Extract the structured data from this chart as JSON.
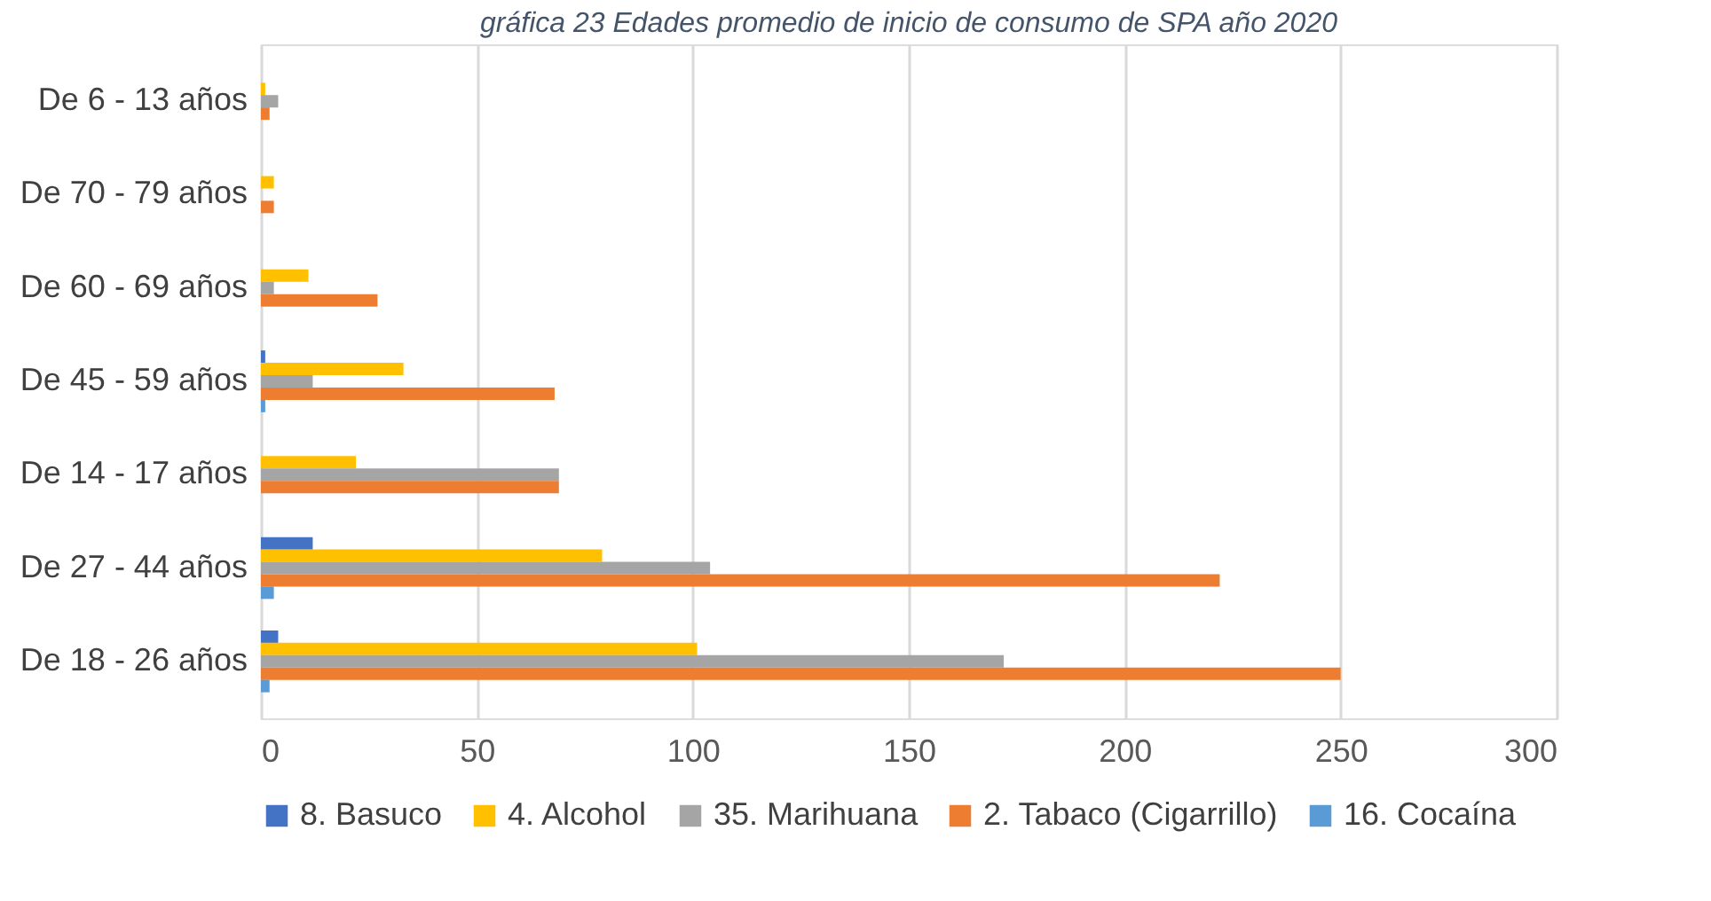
{
  "chart_data": {
    "type": "bar",
    "orientation": "horizontal",
    "title": "gráfica 23 Edades promedio de inicio de consumo de SPA año 2020",
    "categories": [
      "De 6 - 13 años",
      "De 70 - 79 años",
      "De 60 - 69 años",
      "De 45 - 59 años",
      "De 14 - 17 años",
      "De 27 - 44 años",
      "De 18 - 26 años"
    ],
    "series": [
      {
        "name": "8. Basuco",
        "color": "#4472c4",
        "values": [
          0,
          0,
          0,
          1,
          0,
          12,
          4
        ]
      },
      {
        "name": "4. Alcohol",
        "color": "#ffc000",
        "values": [
          1,
          3,
          11,
          33,
          22,
          79,
          101
        ]
      },
      {
        "name": "35. Marihuana",
        "color": "#a5a5a5",
        "values": [
          4,
          0,
          3,
          12,
          69,
          104,
          172
        ]
      },
      {
        "name": "2. Tabaco (Cigarrillo)",
        "color": "#ed7d31",
        "values": [
          2,
          3,
          27,
          68,
          69,
          222,
          250
        ]
      },
      {
        "name": "16. Cocaína",
        "color": "#5b9bd5",
        "values": [
          0,
          0,
          0,
          1,
          0,
          3,
          2
        ]
      }
    ],
    "xlim": [
      0,
      300
    ],
    "xticks": [
      0,
      50,
      100,
      150,
      200,
      250,
      300
    ],
    "grid": "x",
    "legend": "bottom"
  }
}
